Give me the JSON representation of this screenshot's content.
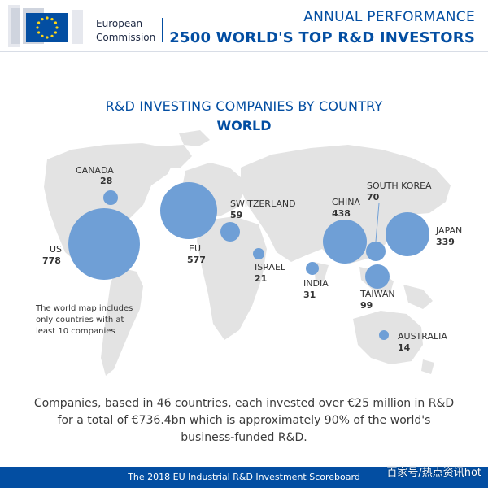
{
  "header": {
    "brand_line1": "European",
    "brand_line2": "Commission",
    "annual_performance": "ANNUAL PERFORMANCE",
    "top_investors": "2500 WORLD'S TOP R&D INVESTORS"
  },
  "chart_data": {
    "type": "bubble-map",
    "title": "R&D INVESTING COMPANIES BY COUNTRY",
    "subtitle": "WORLD",
    "series": [
      {
        "country": "US",
        "value": 778
      },
      {
        "country": "EU",
        "value": 577
      },
      {
        "country": "JAPAN",
        "value": 339
      },
      {
        "country": "CHINA",
        "value": 438
      },
      {
        "country": "SOUTH KOREA",
        "value": 70
      },
      {
        "country": "TAIWAN",
        "value": 99
      },
      {
        "country": "SWITZERLAND",
        "value": 59
      },
      {
        "country": "CANADA",
        "value": 28
      },
      {
        "country": "INDIA",
        "value": 31
      },
      {
        "country": "ISRAEL",
        "value": 21
      },
      {
        "country": "AUSTRALIA",
        "value": 14
      }
    ],
    "note": "The world map includes only countries with at least 10 companies",
    "summary": "Companies, based in 46 countries, each invested over €25 million in R&D for a total of €736.4bn which is approximately 90% of the world's business-funded R&D.",
    "colors": {
      "bubble": "#6f9fd6",
      "map": "#e3e3e3",
      "brand": "#034ea2"
    }
  },
  "footer": {
    "text": "The 2018 EU Industrial R&D Investment Scoreboard",
    "watermark": "百家号/热点资讯hot"
  }
}
